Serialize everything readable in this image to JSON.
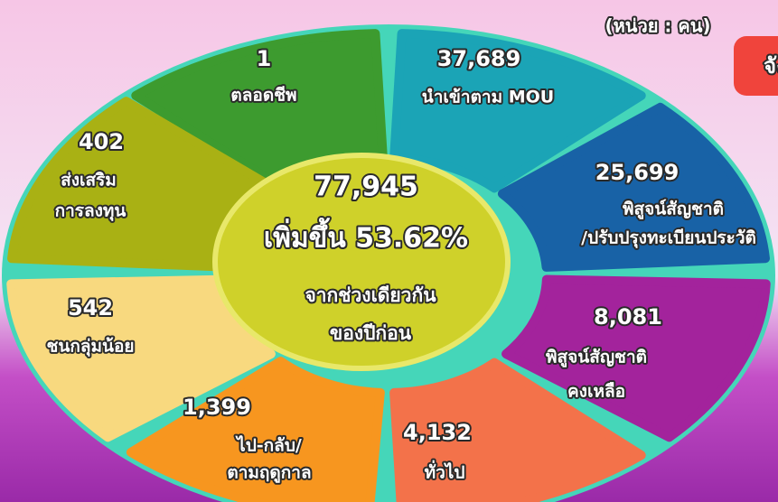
{
  "unit": "(หน่วย : คน)",
  "button": "จัง",
  "center": {
    "total": "77,945",
    "change": "เพิ่มขึ้น 53.62%",
    "note": [
      "จากช่วงเดียวกัน",
      "ของปีก่อน"
    ]
  },
  "segments": [
    {
      "value": "1",
      "label": [
        "ตลอดชีพ"
      ],
      "color": "#3d9b2f"
    },
    {
      "value": "37,689",
      "label": [
        "นำเข้าตาม MOU"
      ],
      "color": "#1ba4b6"
    },
    {
      "value": "25,699",
      "label": [
        "พิสูจน์สัญชาติ",
        "/ปรับปรุงทะเบียนประวัติ"
      ],
      "color": "#1862a6"
    },
    {
      "value": "8,081",
      "label": [
        "พิสูจน์สัญชาติ",
        "คงเหลือ"
      ],
      "color": "#a3239c"
    },
    {
      "value": "4,132",
      "label": [
        "ทั่วไป"
      ],
      "color": "#f3724a"
    },
    {
      "value": "1,399",
      "label": [
        "ไป-กลับ/",
        "ตามฤดูกาล"
      ],
      "color": "#f7961f"
    },
    {
      "value": "542",
      "label": [
        "ชนกลุ่มน้อย"
      ],
      "color": "#f8d97f"
    },
    {
      "value": "402",
      "label": [
        "ส่งเสริม",
        "การลงทุน"
      ],
      "color": "#a9b114"
    }
  ]
}
